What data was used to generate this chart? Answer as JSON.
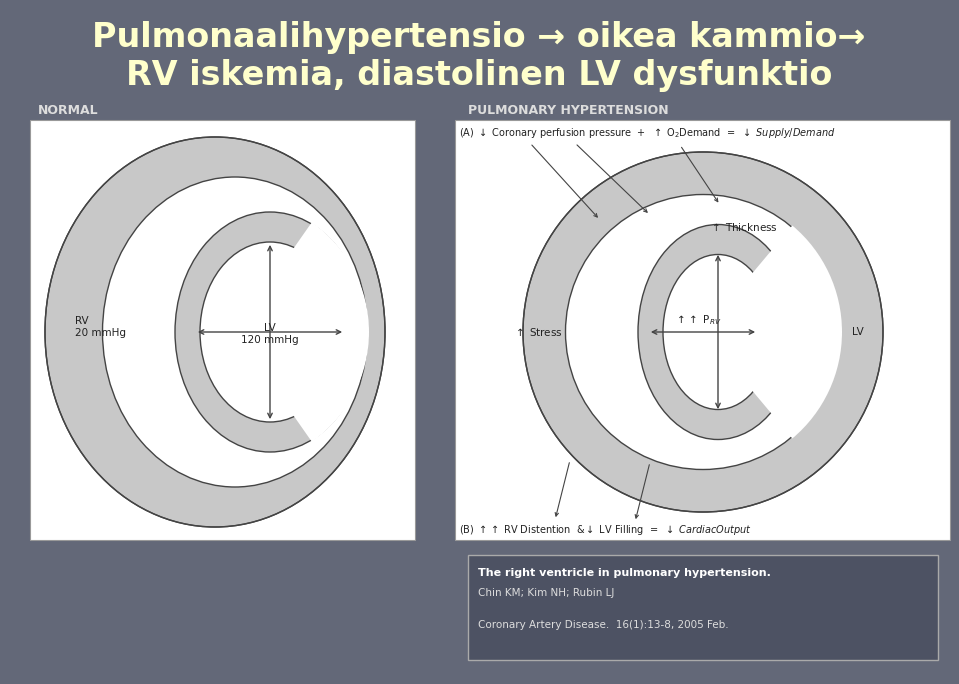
{
  "bg_color": "#636878",
  "title_line1": "Pulmonaalihypertensio → oikea kammio→",
  "title_line2": "RV iskemia, diastolinen LV dysfunktio",
  "title_color": "#ffffcc",
  "title_fontsize": 24,
  "normal_label": "NORMAL",
  "ph_label": "PULMONARY HYPERTENSION",
  "label_color": "#222222",
  "rv_label": "RV\n20 mmHg",
  "lv_label_normal": "LV\n120 mmHg",
  "lv_label_ph": "LV",
  "citation_line1_bold": "The right ventricle in pulmonary hypertension.",
  "citation_line2": "Chin KM; Kim NH; Rubin LJ",
  "citation_line3": "Coronary Artery Disease.  16(1):13-8, 2005 Feb.",
  "panel_bg": "#ffffff",
  "diagram_fill_gray": "#c8c8c8",
  "diagram_fill_white": "#ffffff",
  "line_color": "#444444"
}
